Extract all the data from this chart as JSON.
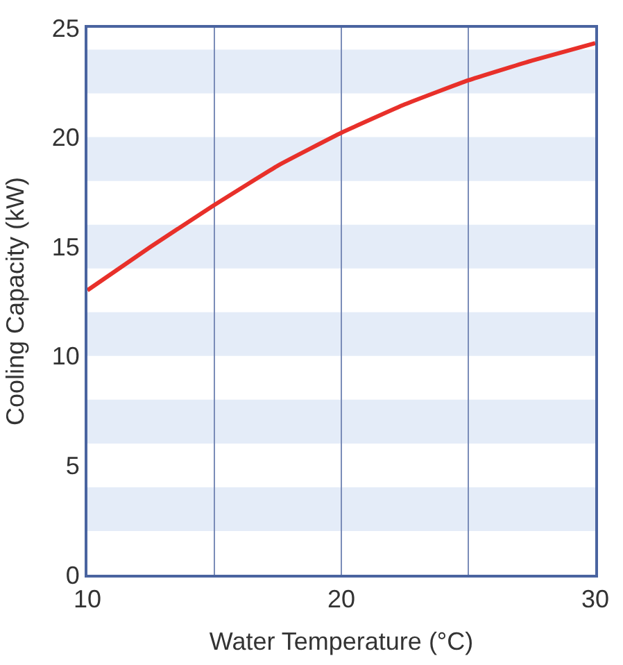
{
  "chart_data": {
    "type": "line",
    "xlabel": "Water Temperature (°C)",
    "ylabel": "Cooling Capacity (kW)",
    "x": [
      10,
      12.5,
      15,
      17.5,
      20,
      22.5,
      25,
      27.5,
      30
    ],
    "series": [
      {
        "color": "#e8302a",
        "values": [
          13,
          15,
          16.9,
          18.7,
          20.2,
          21.5,
          22.6,
          23.5,
          24.3
        ]
      }
    ],
    "xlim": [
      10,
      30
    ],
    "ylim": [
      0,
      25
    ],
    "xticks": [
      10,
      {
        "value": 15,
        "label": null
      },
      20,
      {
        "value": 25,
        "label": null
      },
      30
    ],
    "yticks": [
      0,
      5,
      10,
      15,
      20,
      25
    ],
    "grid": "x",
    "legend": false,
    "marker": "none",
    "line_style": "solid",
    "bands": [
      {
        "axis": "y",
        "from": 2,
        "to": 4,
        "color": "#e4ecf8"
      },
      {
        "axis": "y",
        "from": 6,
        "to": 8,
        "color": "#e4ecf8"
      },
      {
        "axis": "y",
        "from": 10,
        "to": 12,
        "color": "#e4ecf8"
      },
      {
        "axis": "y",
        "from": 14,
        "to": 16,
        "color": "#e4ecf8"
      },
      {
        "axis": "y",
        "from": 18,
        "to": 20,
        "color": "#e4ecf8"
      },
      {
        "axis": "y",
        "from": 22,
        "to": 24,
        "color": "#e4ecf8"
      }
    ]
  }
}
